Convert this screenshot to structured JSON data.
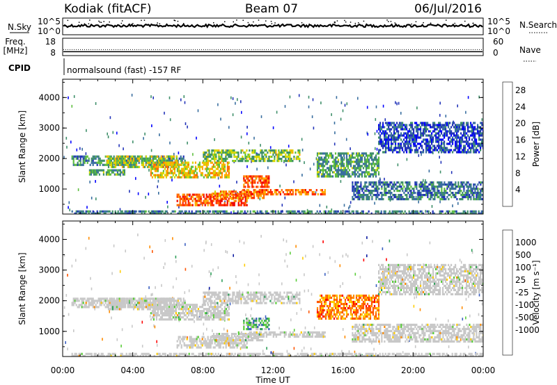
{
  "header": {
    "station": "Kodiak (fitACF)",
    "beam": "Beam 07",
    "date": "06/Jul/2016"
  },
  "strips": {
    "nsky_label": "N.Sky",
    "nsearch_label": "N.Search",
    "freq_label": "Freq.",
    "freq_unit": "[MHz]",
    "nave_label": "Nave",
    "cpid_label": "CPID",
    "cpid_text": "normalsound (fast) -157 RF",
    "nsky_ticks": [
      "10^5",
      "10^0"
    ],
    "nsearch_ticks": [
      "10^5",
      "10^0"
    ],
    "freq_ticks": [
      "18",
      "8"
    ],
    "nave_ticks": [
      "60",
      "0"
    ],
    "freq_value_mhz": 10,
    "nave_value": 20
  },
  "colors": {
    "power": [
      "#0000ff",
      "#2233b8",
      "#3a6fa0",
      "#3f8f6a",
      "#5fbf3f",
      "#d8d800",
      "#ffaa00",
      "#ff6a00",
      "#ff2a00",
      "#ee0000"
    ],
    "velocity": [
      "#ff0000",
      "#ff5500",
      "#ff8c00",
      "#ffcc00",
      "#c8c8c8",
      "#c8c8c8",
      "#5acd3a",
      "#2f9f5a",
      "#3a5fc0",
      "#0a1aa0"
    ],
    "velocity_gray": "#c8c8c8"
  },
  "chart_data": [
    {
      "type": "heatmap",
      "panel": "power",
      "ylabel": "Slant Range [km]",
      "xlabel": "",
      "x_ticks": [
        "00:00",
        "04:00",
        "08:00",
        "12:00",
        "16:00",
        "20:00",
        "00:00"
      ],
      "y_ticks": [
        "1000",
        "2000",
        "3000",
        "4000"
      ],
      "ylim": [
        180,
        4600
      ],
      "xlim_hours": [
        0,
        24
      ],
      "colorbar_label": "Power [dB]",
      "colorbar_ticks": [
        "4",
        "8",
        "12",
        "16",
        "20",
        "24",
        "28"
      ],
      "colorbar_range": [
        0,
        30
      ],
      "features": [
        {
          "h0": 0.5,
          "h1": 7.0,
          "r0": 1800,
          "r1": 2100,
          "level": 0.3
        },
        {
          "h0": 0.5,
          "h1": 24.0,
          "r0": 180,
          "r1": 300,
          "level": 0.25
        },
        {
          "h0": 1.5,
          "h1": 3.5,
          "r0": 1450,
          "r1": 1650,
          "level": 0.35
        },
        {
          "h0": 2.5,
          "h1": 6.5,
          "r0": 1700,
          "r1": 2100,
          "level": 0.5
        },
        {
          "h0": 5.0,
          "h1": 9.5,
          "r0": 1400,
          "r1": 1900,
          "level": 0.6
        },
        {
          "h0": 6.5,
          "h1": 10.5,
          "r0": 500,
          "r1": 850,
          "level": 0.85
        },
        {
          "h0": 8.5,
          "h1": 11.5,
          "r0": 700,
          "r1": 950,
          "level": 0.75
        },
        {
          "h0": 10.0,
          "h1": 15.0,
          "r0": 850,
          "r1": 1000,
          "level": 0.8
        },
        {
          "h0": 10.3,
          "h1": 11.8,
          "r0": 1050,
          "r1": 1450,
          "level": 0.8
        },
        {
          "h0": 8.0,
          "h1": 13.5,
          "r0": 1900,
          "r1": 2300,
          "level": 0.45
        },
        {
          "h0": 14.5,
          "h1": 18.0,
          "r0": 1400,
          "r1": 2200,
          "level": 0.35
        },
        {
          "h0": 16.5,
          "h1": 24.0,
          "r0": 700,
          "r1": 1250,
          "level": 0.25
        },
        {
          "h0": 18.0,
          "h1": 24.0,
          "r0": 2200,
          "r1": 3200,
          "level": 0.15
        }
      ]
    },
    {
      "type": "heatmap",
      "panel": "velocity",
      "ylabel": "Slant Range [km]",
      "xlabel": "Time UT",
      "x_ticks": [
        "00:00",
        "04:00",
        "08:00",
        "12:00",
        "16:00",
        "20:00",
        "00:00"
      ],
      "y_ticks": [
        "1000",
        "2000",
        "3000",
        "4000"
      ],
      "ylim": [
        180,
        4600
      ],
      "xlim_hours": [
        0,
        24
      ],
      "colorbar_label": "Velocity [m s⁻¹]",
      "colorbar_ticks": [
        "1000",
        "500",
        "100",
        "25",
        "-25",
        "-100",
        "-500",
        "-1000"
      ],
      "features": [
        {
          "h0": 0.5,
          "h1": 7.0,
          "r0": 1800,
          "r1": 2100,
          "level": 0.5
        },
        {
          "h0": 0.5,
          "h1": 24.0,
          "r0": 180,
          "r1": 300,
          "level": 0.5
        },
        {
          "h0": 2.5,
          "h1": 6.5,
          "r0": 1700,
          "r1": 2100,
          "level": 0.5
        },
        {
          "h0": 5.0,
          "h1": 9.5,
          "r0": 1400,
          "r1": 1900,
          "level": 0.5
        },
        {
          "h0": 6.5,
          "h1": 10.5,
          "r0": 500,
          "r1": 850,
          "level": 0.5
        },
        {
          "h0": 8.5,
          "h1": 11.5,
          "r0": 700,
          "r1": 950,
          "level": 0.5
        },
        {
          "h0": 10.0,
          "h1": 15.0,
          "r0": 850,
          "r1": 1000,
          "level": 0.5
        },
        {
          "h0": 10.3,
          "h1": 11.8,
          "r0": 1050,
          "r1": 1450,
          "level": 0.72
        },
        {
          "h0": 8.0,
          "h1": 13.5,
          "r0": 1900,
          "r1": 2300,
          "level": 0.5
        },
        {
          "h0": 14.5,
          "h1": 18.0,
          "r0": 1400,
          "r1": 2200,
          "level": 0.2
        },
        {
          "h0": 16.5,
          "h1": 24.0,
          "r0": 700,
          "r1": 1250,
          "level": 0.5
        },
        {
          "h0": 18.0,
          "h1": 24.0,
          "r0": 2200,
          "r1": 3200,
          "level": 0.5
        }
      ]
    }
  ]
}
